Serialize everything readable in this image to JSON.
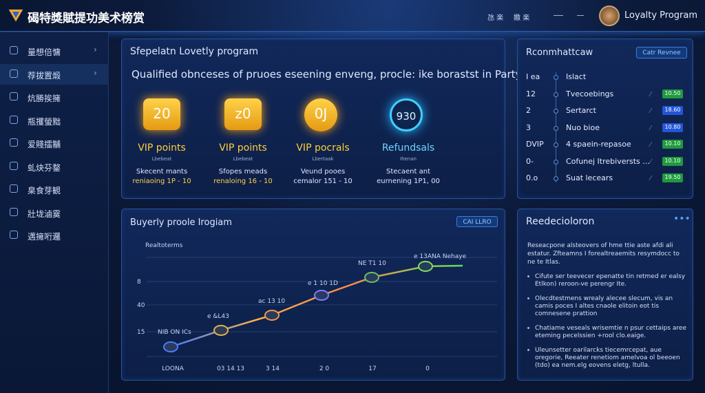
{
  "header": {
    "brand": "碣特獎賦提功美术榜赏",
    "nav": [
      "氹 楽",
      "嫐 楽"
    ],
    "user": "Loyalty Program"
  },
  "sidebar": [
    "量想倍慵",
    "荐拔置煅",
    "炕勝挨擁",
    "瓶攫螢黜",
    "爱賤擂黼",
    "虬炔芬鍪",
    "臬食芽観",
    "壯垅滷霙",
    "邁擁哘邏"
  ],
  "program": {
    "title": "Sfepelatn Lovetly program",
    "subtitle": "Qualified obnceses of pruoes eseening enveng, procle: ike borastst in Party",
    "tiles": [
      {
        "badge": "20",
        "name": "VIP points",
        "small": "Lbebeat",
        "desc": [
          "Skecent mants",
          "reniaoing 1P - 10"
        ]
      },
      {
        "badge": "z0",
        "name": "VIP points",
        "small": "Lbebeat",
        "desc": [
          "Sfopes meads",
          "renaloing 16 - 10"
        ]
      },
      {
        "badge": "0J",
        "name": "VIP pocrals",
        "small": "Lbertaak",
        "desc": [
          "Veund pooes",
          "cemalor 151 - 10"
        ]
      },
      {
        "badge": "930",
        "name": "Refundsals",
        "small": "Ihenan",
        "desc": [
          "Stecaent ant",
          "eurnening 1P1, 00"
        ]
      }
    ]
  },
  "recs": {
    "title": "Rconmhattcaw",
    "button": "Catr Revnee",
    "rows": [
      {
        "a": "I ea",
        "b": "Islact"
      },
      {
        "a": "12",
        "b": "Tvecoebings",
        "c": "10.50"
      },
      {
        "a": "2",
        "b": "Sertarct",
        "c": "18.60"
      },
      {
        "a": "3",
        "b": "Nuo bioe",
        "c": "10.80"
      },
      {
        "a": "DVIP",
        "b": "4 spaein-repasoe",
        "c": "10.10"
      },
      {
        "a": "0-",
        "b": "Cofunej Itrebiversts ...",
        "c": "10.10"
      },
      {
        "a": "0.o",
        "b": "Suat lecears",
        "c": "19.50"
      }
    ]
  },
  "growth": {
    "title": "Buyerly proole Irogiam",
    "button": "CAI LLRO",
    "label": "Realtoterms",
    "y_labels": [
      "8",
      "40",
      "15"
    ],
    "x_labels": [
      "LOONA",
      "03 14 13",
      "3 14",
      "2 0",
      "17",
      "0"
    ],
    "points": [
      "NIB ON ICs",
      "e &L43",
      "ac 13 10",
      "e 1 10 1D",
      "NE T1 10",
      "e 13ANA Nehaye"
    ]
  },
  "notes": {
    "title": "Reedecioloron",
    "body": "Reseacpone alsteovers of hme ttie aste afdi ali estatur. Zfteamns I forealtreaemits resymdocc to ne te Itlas.",
    "bullets": [
      "Cifute ser teevecer epenatte tin retmed er ealsy Etlkon) reroon-ve perengr Ite.",
      "Olecdtestmens wrealy alecee slecum, vis an camis poces I altes cnaole elitoin eot tis comnesene prattion",
      "Chatiame veseals wrisemtie n psur cettaips aree eteming pecelssien +rool clo.eaige.",
      "Uleunsetter oarilarcks tiecemrcepat, aue oregorie, Reeater renetiom amelvoa ol beeoen (tdo) ea nem.elg eovens eletg, ltulla."
    ]
  }
}
